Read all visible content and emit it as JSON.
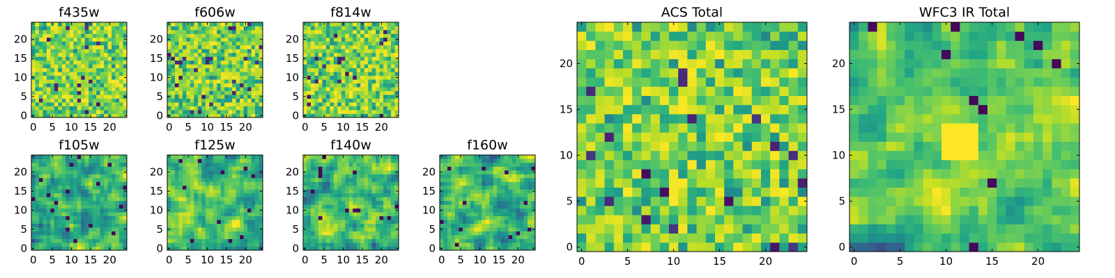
{
  "figure": {
    "panels": [
      {
        "id": "f435w",
        "title": "f435w",
        "size": "small",
        "xticks": [
          "0",
          "5",
          "10",
          "15",
          "20"
        ],
        "yticks": [
          "0",
          "5",
          "10",
          "15",
          "20"
        ]
      },
      {
        "id": "f606w",
        "title": "f606w",
        "size": "small",
        "xticks": [
          "0",
          "5",
          "10",
          "15",
          "20"
        ],
        "yticks": [
          "0",
          "5",
          "10",
          "15",
          "20"
        ]
      },
      {
        "id": "f814w",
        "title": "f814w",
        "size": "small",
        "xticks": [
          "0",
          "5",
          "10",
          "15",
          "20"
        ],
        "yticks": [
          "0",
          "5",
          "10",
          "15",
          "20"
        ]
      },
      {
        "id": "f105w",
        "title": "f105w",
        "size": "small",
        "xticks": [
          "0",
          "5",
          "10",
          "15",
          "20"
        ],
        "yticks": [
          "0",
          "5",
          "10",
          "15",
          "20"
        ]
      },
      {
        "id": "f125w",
        "title": "f125w",
        "size": "small",
        "xticks": [
          "0",
          "5",
          "10",
          "15",
          "20"
        ],
        "yticks": [
          "0",
          "5",
          "10",
          "15",
          "20"
        ]
      },
      {
        "id": "f140w",
        "title": "f140w",
        "size": "small",
        "xticks": [
          "0",
          "5",
          "10",
          "15",
          "20"
        ],
        "yticks": [
          "0",
          "5",
          "10",
          "15",
          "20"
        ]
      },
      {
        "id": "f160w",
        "title": "f160w",
        "size": "small",
        "xticks": [
          "0",
          "5",
          "10",
          "15",
          "20"
        ],
        "yticks": [
          "0",
          "5",
          "10",
          "15",
          "20"
        ]
      },
      {
        "id": "acs-total",
        "title": "ACS Total",
        "size": "large",
        "xticks": [
          "0",
          "5",
          "10",
          "15",
          "20"
        ],
        "yticks": [
          "0",
          "5",
          "10",
          "15",
          "20"
        ]
      },
      {
        "id": "wfc3-ir-total",
        "title": "WFC3 IR Total",
        "size": "large",
        "xticks": [
          "0",
          "5",
          "10",
          "15",
          "20"
        ],
        "yticks": [
          "0",
          "5",
          "10",
          "15",
          "20"
        ]
      }
    ]
  },
  "chart_data": [
    {
      "type": "heatmap",
      "title": "f435w",
      "grid": [
        25,
        25
      ],
      "xlim": [
        -0.5,
        24.5
      ],
      "ylim": [
        -0.5,
        24.5
      ],
      "colormap": "viridis",
      "texture": "pixel-noise",
      "seed": 11
    },
    {
      "type": "heatmap",
      "title": "f606w",
      "grid": [
        25,
        25
      ],
      "xlim": [
        -0.5,
        24.5
      ],
      "ylim": [
        -0.5,
        24.5
      ],
      "colormap": "viridis",
      "texture": "pixel-noise",
      "seed": 23
    },
    {
      "type": "heatmap",
      "title": "f814w",
      "grid": [
        25,
        25
      ],
      "xlim": [
        -0.5,
        24.5
      ],
      "ylim": [
        -0.5,
        24.5
      ],
      "colormap": "viridis",
      "texture": "pixel-noise",
      "seed": 37
    },
    {
      "type": "heatmap",
      "title": "f105w",
      "grid": [
        25,
        25
      ],
      "xlim": [
        -0.5,
        24.5
      ],
      "ylim": [
        -0.5,
        24.5
      ],
      "colormap": "viridis",
      "texture": "smooth-blobs",
      "seed": 41
    },
    {
      "type": "heatmap",
      "title": "f125w",
      "grid": [
        25,
        25
      ],
      "xlim": [
        -0.5,
        24.5
      ],
      "ylim": [
        -0.5,
        24.5
      ],
      "colormap": "viridis",
      "texture": "smooth-blobs",
      "seed": 53
    },
    {
      "type": "heatmap",
      "title": "f140w",
      "grid": [
        25,
        25
      ],
      "xlim": [
        -0.5,
        24.5
      ],
      "ylim": [
        -0.5,
        24.5
      ],
      "colormap": "viridis",
      "texture": "smooth-blobs",
      "seed": 67
    },
    {
      "type": "heatmap",
      "title": "f160w",
      "grid": [
        25,
        25
      ],
      "xlim": [
        -0.5,
        24.5
      ],
      "ylim": [
        -0.5,
        24.5
      ],
      "colormap": "viridis",
      "texture": "smooth-blobs",
      "seed": 71
    },
    {
      "type": "heatmap",
      "title": "ACS Total",
      "grid": [
        25,
        25
      ],
      "xlim": [
        -0.5,
        24.5
      ],
      "ylim": [
        -0.5,
        24.5
      ],
      "colormap": "viridis",
      "texture": "pixel-noise",
      "seed": 83
    },
    {
      "type": "heatmap",
      "title": "WFC3 IR Total",
      "grid": [
        25,
        25
      ],
      "xlim": [
        -0.5,
        24.5
      ],
      "ylim": [
        -0.5,
        24.5
      ],
      "colormap": "viridis",
      "texture": "smooth-blobs",
      "seed": 97,
      "bright_patch_center": [
        12,
        12
      ]
    }
  ]
}
